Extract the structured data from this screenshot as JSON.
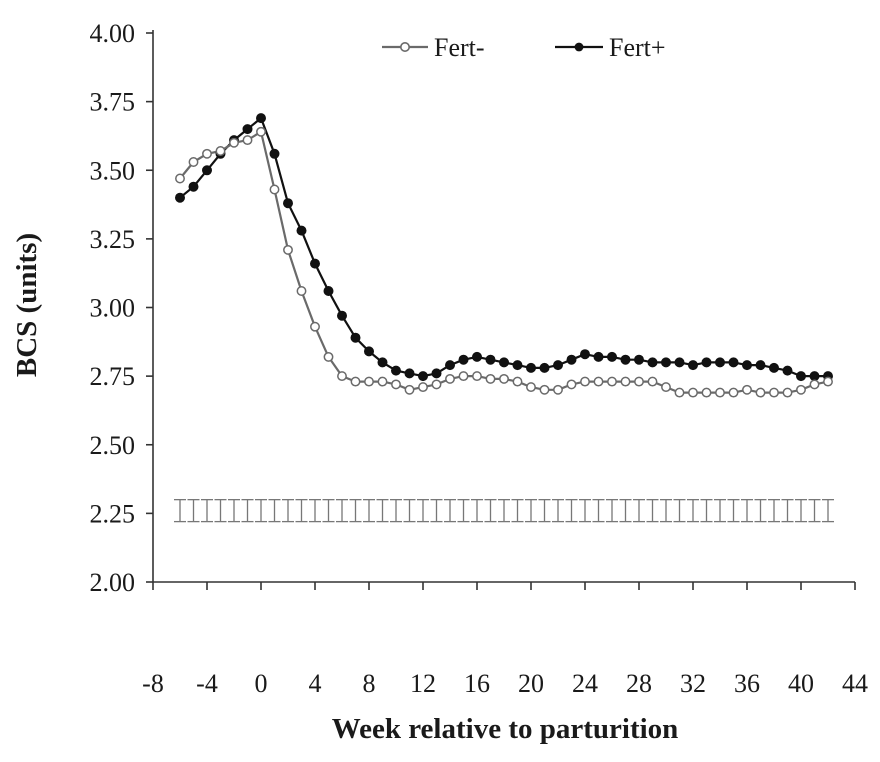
{
  "chart_data": {
    "type": "line",
    "xlabel": "Week relative to parturition",
    "ylabel": "BCS (units)",
    "xlim": [
      -8,
      44
    ],
    "ylim": [
      2.0,
      4.0
    ],
    "x_ticks": [
      -8,
      -4,
      0,
      4,
      8,
      12,
      16,
      20,
      24,
      28,
      32,
      36,
      40,
      44
    ],
    "x_tick_labels": [
      "-8",
      "-4",
      "0",
      "4",
      "8",
      "12",
      "16",
      "20",
      "24",
      "28",
      "32",
      "36",
      "40",
      "44"
    ],
    "y_ticks": [
      2.0,
      2.25,
      2.5,
      2.75,
      3.0,
      3.25,
      3.5,
      3.75,
      4.0
    ],
    "y_tick_labels": [
      "2.00",
      "2.25",
      "2.50",
      "2.75",
      "3.00",
      "3.25",
      "3.50",
      "3.75",
      "4.00"
    ],
    "grid": false,
    "legend_position": "top-right",
    "x": [
      -6,
      -5,
      -4,
      -3,
      -2,
      -1,
      0,
      1,
      2,
      3,
      4,
      5,
      6,
      7,
      8,
      9,
      10,
      11,
      12,
      13,
      14,
      15,
      16,
      17,
      18,
      19,
      20,
      21,
      22,
      23,
      24,
      25,
      26,
      27,
      28,
      29,
      30,
      31,
      32,
      33,
      34,
      35,
      36,
      37,
      38,
      39,
      40,
      41,
      42
    ],
    "series": [
      {
        "name": "Fert-",
        "marker": "open-circle",
        "color": "#6a6a6a",
        "values": [
          3.47,
          3.53,
          3.56,
          3.57,
          3.6,
          3.61,
          3.64,
          3.43,
          3.21,
          3.06,
          2.93,
          2.82,
          2.75,
          2.73,
          2.73,
          2.73,
          2.72,
          2.7,
          2.71,
          2.72,
          2.74,
          2.75,
          2.75,
          2.74,
          2.74,
          2.73,
          2.71,
          2.7,
          2.7,
          2.72,
          2.73,
          2.73,
          2.73,
          2.73,
          2.73,
          2.73,
          2.71,
          2.69,
          2.69,
          2.69,
          2.69,
          2.69,
          2.7,
          2.69,
          2.69,
          2.69,
          2.7,
          2.72,
          2.73
        ]
      },
      {
        "name": "Fert+",
        "marker": "filled-circle",
        "color": "#111111",
        "values": [
          3.4,
          3.44,
          3.5,
          3.56,
          3.61,
          3.65,
          3.69,
          3.56,
          3.38,
          3.28,
          3.16,
          3.06,
          2.97,
          2.89,
          2.84,
          2.8,
          2.77,
          2.76,
          2.75,
          2.76,
          2.79,
          2.81,
          2.82,
          2.81,
          2.8,
          2.79,
          2.78,
          2.78,
          2.79,
          2.81,
          2.83,
          2.82,
          2.82,
          2.81,
          2.81,
          2.8,
          2.8,
          2.8,
          2.79,
          2.8,
          2.8,
          2.8,
          2.79,
          2.79,
          2.78,
          2.77,
          2.75,
          2.75,
          2.75
        ]
      }
    ],
    "error_bars": {
      "center": 2.26,
      "half_width": 0.04,
      "x_range": [
        -6,
        42
      ]
    }
  }
}
